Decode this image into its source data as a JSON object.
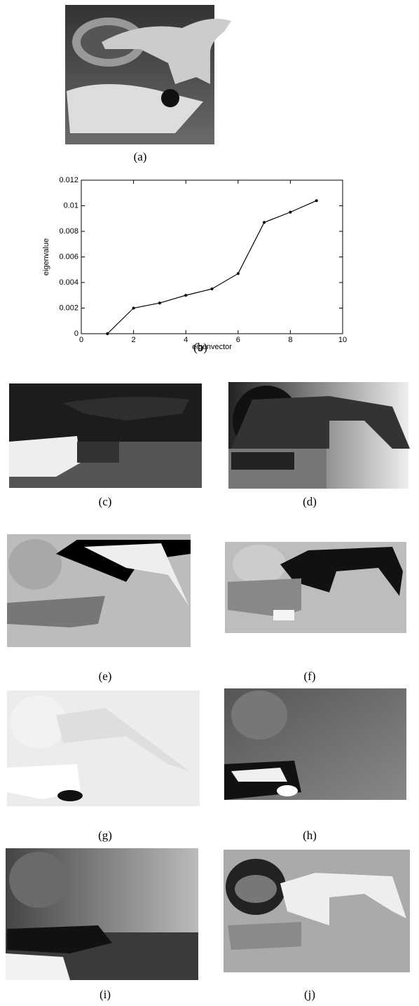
{
  "captions": [
    "(a)",
    "(b)",
    "(c)",
    "(d)",
    "(e)",
    "(f)",
    "(g)",
    "(h)",
    "(i)",
    "(j)"
  ],
  "chart_data": {
    "type": "line",
    "x_label": "eigenvector",
    "y_label": "eigenvalue",
    "x": [
      1,
      2,
      3,
      4,
      5,
      6,
      7,
      8,
      9
    ],
    "series": [
      {
        "color": "#000000",
        "values": [
          0,
          0.002,
          0.0024,
          0.003,
          0.0035,
          0.0047,
          0.0087,
          0.0095,
          0.0104
        ]
      }
    ],
    "xlim": [
      0,
      10
    ],
    "xticks": [
      0,
      2,
      4,
      6,
      8,
      10
    ],
    "ylim": [
      0,
      0.012
    ],
    "yticks": [
      0,
      0.002,
      0.004,
      0.006,
      0.008,
      0.01,
      0.012
    ]
  }
}
